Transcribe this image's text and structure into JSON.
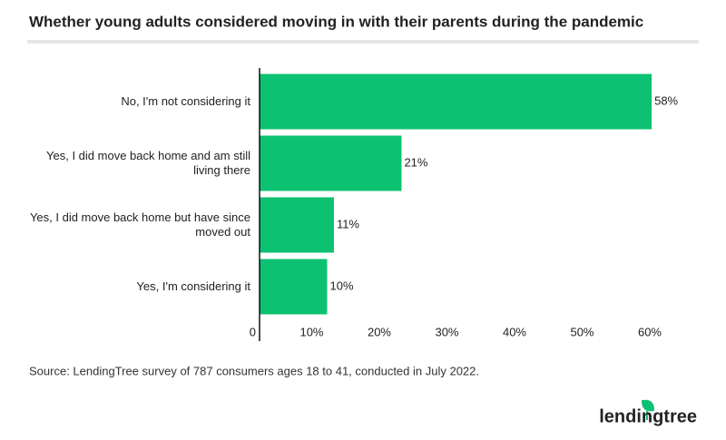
{
  "chart_data": {
    "type": "bar",
    "orientation": "horizontal",
    "title": "Whether young adults considered moving in with their parents during the pandemic",
    "categories": [
      "No, I'm not considering it",
      "Yes, I did move back home and am still living there",
      "Yes, I did move back home but have since moved out",
      "Yes, I'm considering it"
    ],
    "values": [
      58,
      21,
      11,
      10
    ],
    "value_labels": [
      "58%",
      "21%",
      "11%",
      "10%"
    ],
    "color": "#0dc172",
    "xlim": [
      0,
      60
    ],
    "xticks": [
      0,
      {
        "value": 10,
        "label": "10%"
      },
      {
        "value": 20,
        "label": "20%"
      },
      {
        "value": 30,
        "label": "30%"
      },
      {
        "value": 40,
        "label": "40%"
      },
      {
        "value": 50,
        "label": "50%"
      },
      {
        "value": 60,
        "label": "60%"
      }
    ],
    "source": "Source: LendingTree survey of 787 consumers ages 18 to 41, conducted in July 2022.",
    "logo": "lendingtree"
  }
}
